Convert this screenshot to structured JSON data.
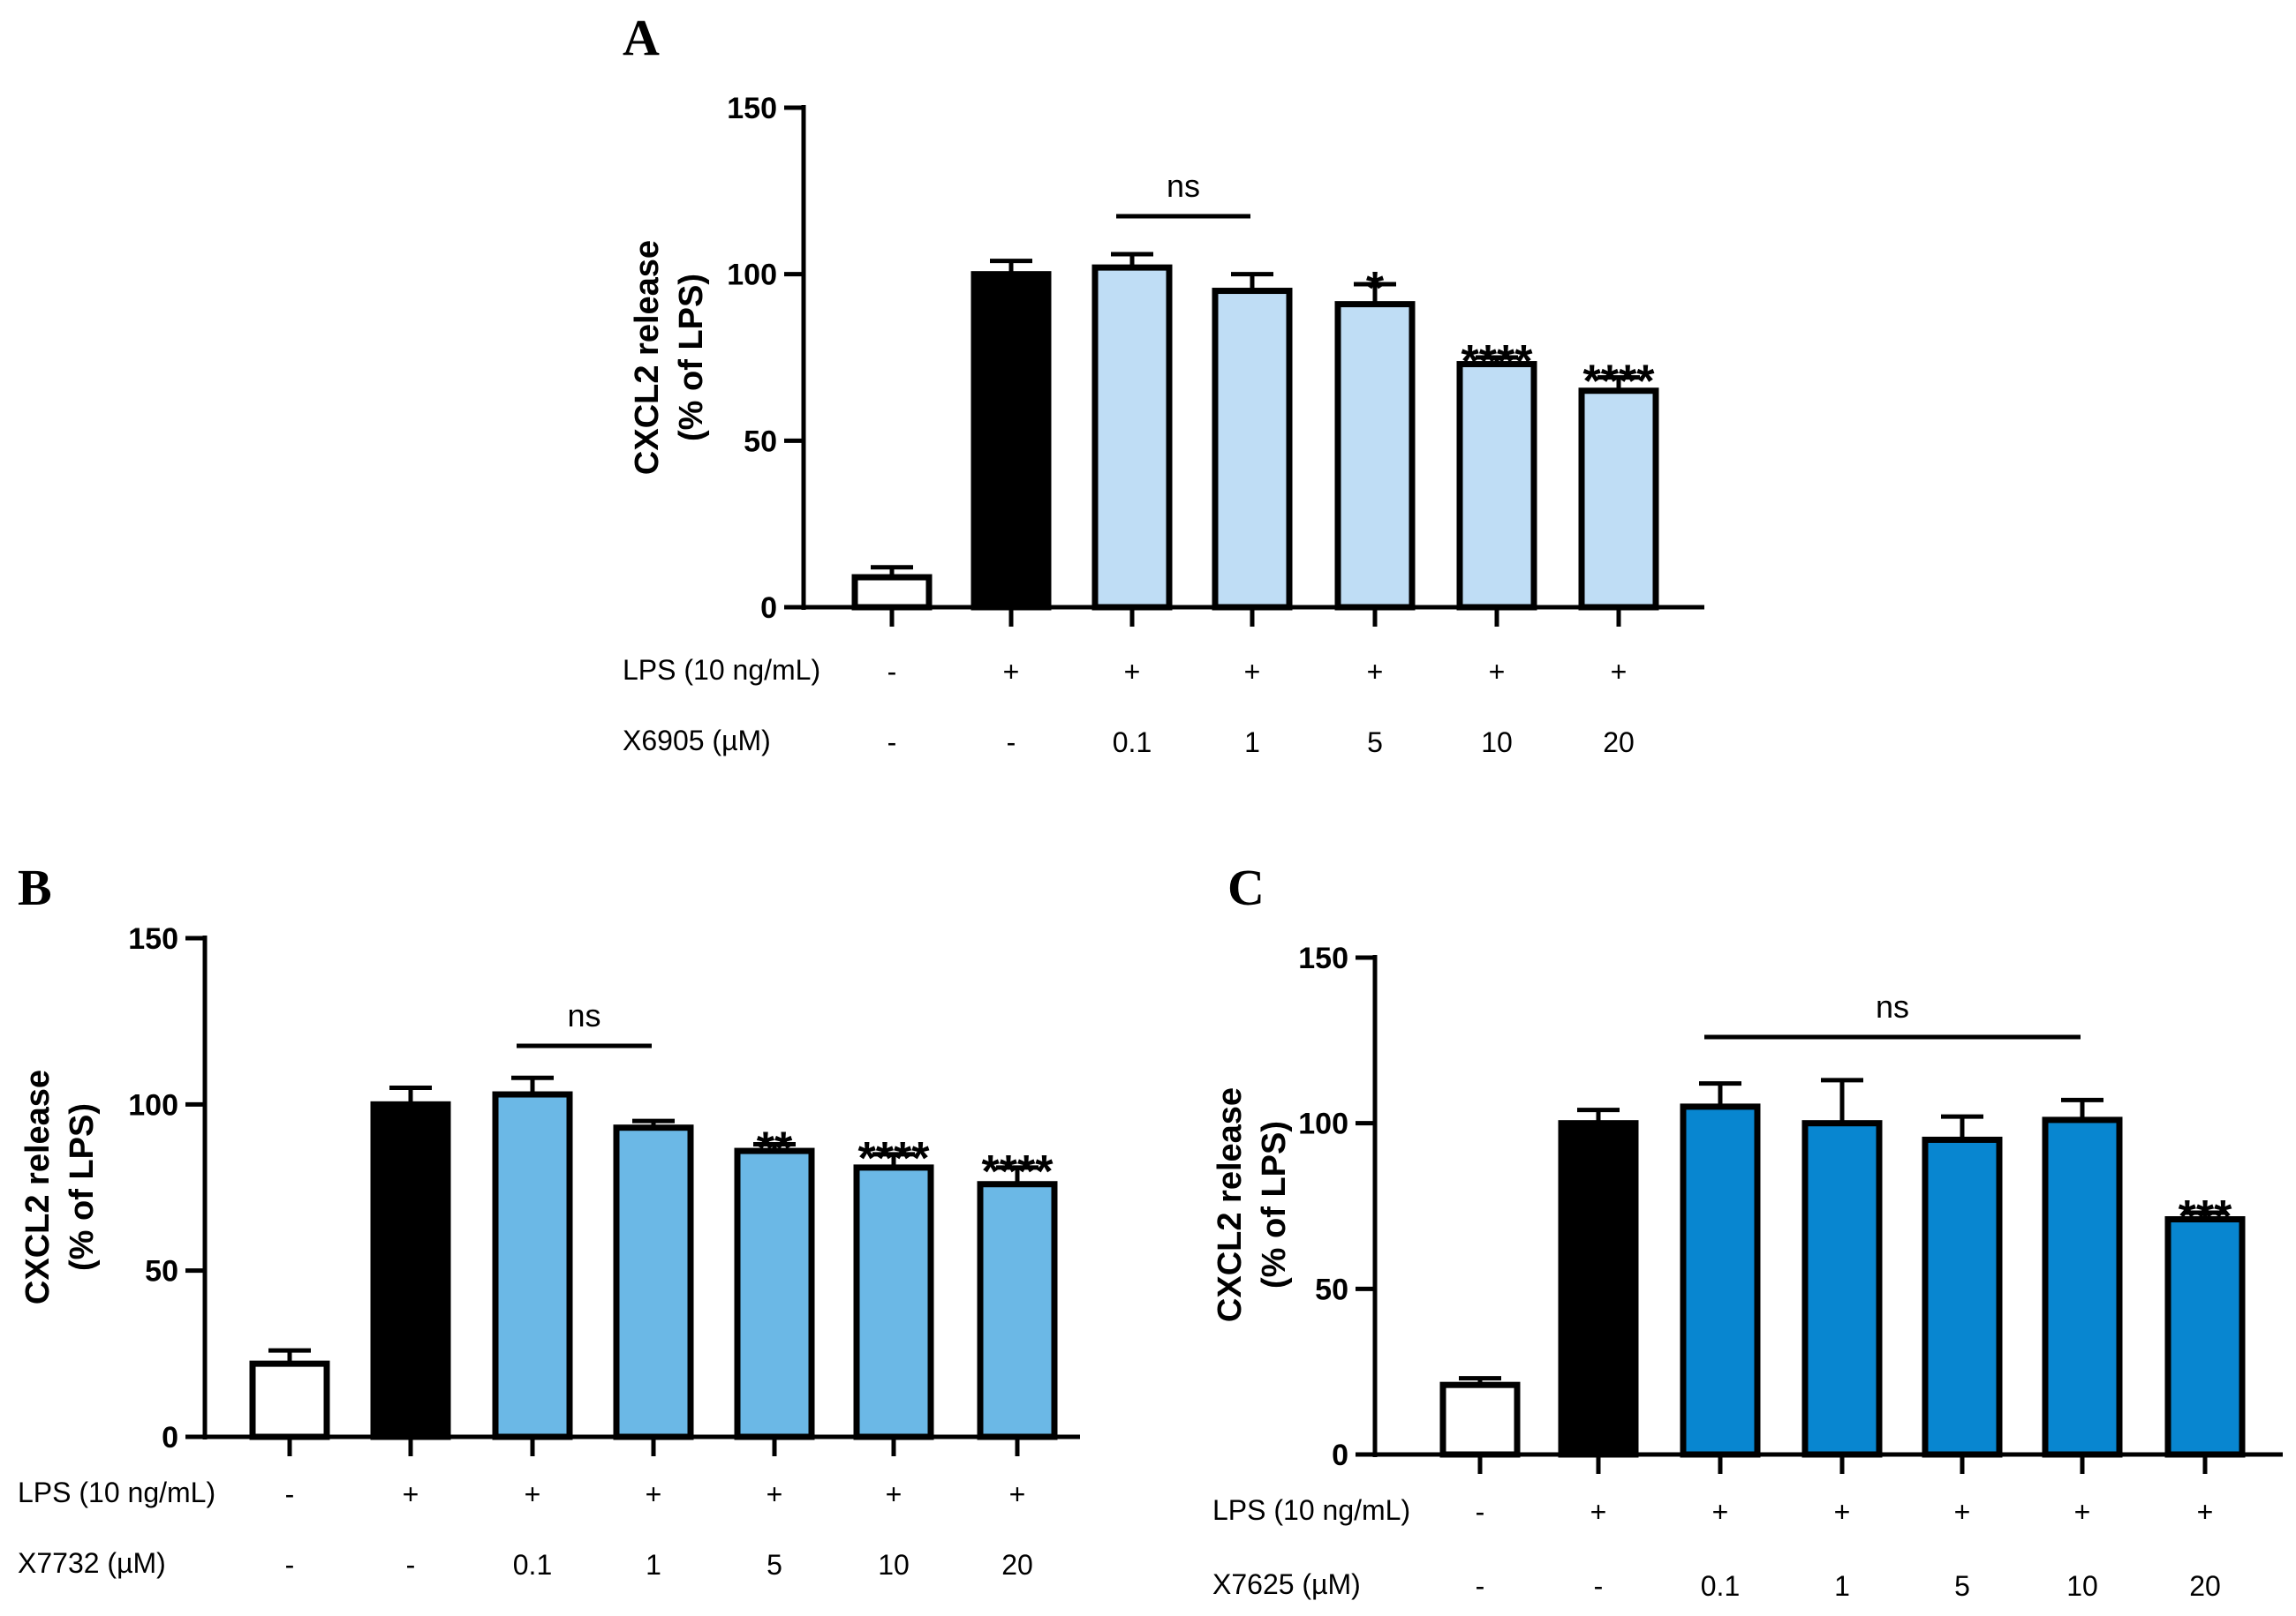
{
  "chart_data": [
    {
      "type": "bar",
      "panel": "A",
      "ylabel_line1": "CXCL2 release",
      "ylabel_line2": "(% of LPS)",
      "ylim": [
        0,
        150
      ],
      "yticks": [
        0,
        50,
        100,
        150
      ],
      "categories": [
        "-/-",
        "+/-",
        "+/0.1",
        "+/1",
        "+/5",
        "+/10",
        "+/20"
      ],
      "values": [
        9,
        100,
        102,
        95,
        91,
        73,
        65
      ],
      "errors": [
        3,
        4,
        4,
        5,
        6,
        2,
        4
      ],
      "colors": [
        "#ffffff",
        "#000000",
        "#bfddf5",
        "#bfddf5",
        "#bfddf5",
        "#bfddf5",
        "#bfddf5"
      ],
      "significance": [
        "",
        "",
        "",
        "",
        "*",
        "****",
        "****"
      ],
      "ns_label": "ns",
      "ns_span": [
        2,
        3
      ],
      "lps_label": "LPS (10 ng/mL)",
      "lps": [
        "-",
        "+",
        "+",
        "+",
        "+",
        "+",
        "+"
      ],
      "compound_label": "X6905 (µM)",
      "compound": [
        "-",
        "-",
        "0.1",
        "1",
        "5",
        "10",
        "20"
      ]
    },
    {
      "type": "bar",
      "panel": "B",
      "ylabel_line1": "CXCL2 release",
      "ylabel_line2": "(% of LPS)",
      "ylim": [
        0,
        150
      ],
      "yticks": [
        0,
        50,
        100,
        150
      ],
      "categories": [
        "-/-",
        "+/-",
        "+/0.1",
        "+/1",
        "+/5",
        "+/10",
        "+/20"
      ],
      "values": [
        22,
        100,
        103,
        93,
        86,
        81,
        76
      ],
      "errors": [
        4,
        5,
        5,
        2,
        2,
        4,
        5
      ],
      "colors": [
        "#ffffff",
        "#000000",
        "#6bb8e6",
        "#6bb8e6",
        "#6bb8e6",
        "#6bb8e6",
        "#6bb8e6"
      ],
      "significance": [
        "",
        "",
        "",
        "",
        "**",
        "****",
        "****"
      ],
      "ns_label": "ns",
      "ns_span": [
        2,
        3
      ],
      "lps_label": "LPS (10 ng/mL)",
      "lps": [
        "-",
        "+",
        "+",
        "+",
        "+",
        "+",
        "+"
      ],
      "compound_label": "X7732 (µM)",
      "compound": [
        "-",
        "-",
        "0.1",
        "1",
        "5",
        "10",
        "20"
      ]
    },
    {
      "type": "bar",
      "panel": "C",
      "ylabel_line1": "CXCL2 release",
      "ylabel_line2": "(% of LPS)",
      "ylim": [
        0,
        150
      ],
      "yticks": [
        0,
        50,
        100,
        150
      ],
      "categories": [
        "-/-",
        "+/-",
        "+/0.1",
        "+/1",
        "+/5",
        "+/10",
        "+/20"
      ],
      "values": [
        21,
        100,
        105,
        100,
        95,
        101,
        71
      ],
      "errors": [
        2,
        4,
        7,
        13,
        7,
        6,
        2
      ],
      "colors": [
        "#ffffff",
        "#000000",
        "#0886d0",
        "#0886d0",
        "#0886d0",
        "#0886d0",
        "#0886d0"
      ],
      "significance": [
        "",
        "",
        "",
        "",
        "",
        "",
        "***"
      ],
      "ns_label": "ns",
      "ns_span": [
        2,
        5
      ],
      "lps_label": "LPS (10 ng/mL)",
      "lps": [
        "-",
        "+",
        "+",
        "+",
        "+",
        "+",
        "+"
      ],
      "compound_label": "X7625 (µM)",
      "compound": [
        "-",
        "-",
        "0.1",
        "1",
        "5",
        "10",
        "20"
      ]
    }
  ]
}
